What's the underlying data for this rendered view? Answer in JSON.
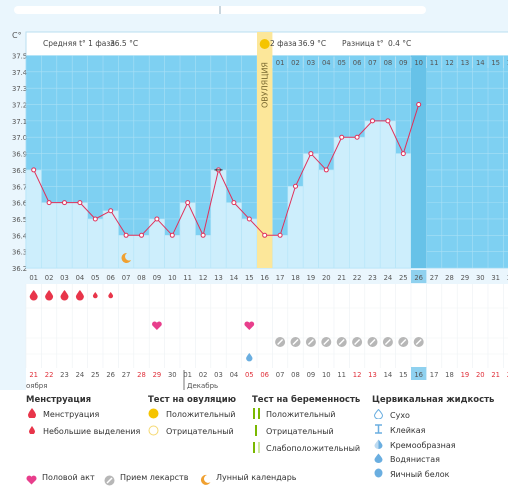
{
  "window": {
    "unit_label": "C°"
  },
  "header": {
    "phase1_label": "Средняя t° 1 фаза",
    "phase1_value": "36.5 °C",
    "phase2_label": "2 фаза",
    "phase2_value": "36.9 °C",
    "diff_label": "Разница t°",
    "diff_value": "0.4 °C",
    "ovulation_label": "ОВУЛЯЦИЯ"
  },
  "chart_data": {
    "type": "line",
    "ylim": [
      36.2,
      37.5
    ],
    "yticks": [
      "37.5",
      "37.4",
      "37.3",
      "37.2",
      "37.1",
      "37.0",
      "36.9",
      "36.8",
      "36.7",
      "36.6",
      "36.5",
      "36.4",
      "36.3",
      "36.2"
    ],
    "cycle_days": [
      "01",
      "02",
      "03",
      "04",
      "05",
      "06",
      "07",
      "08",
      "09",
      "10",
      "11",
      "12",
      "13",
      "14",
      "15",
      "16",
      "17",
      "18",
      "19",
      "20",
      "21",
      "22",
      "23",
      "24",
      "25",
      "26",
      "27",
      "28",
      "29",
      "30",
      "31",
      "32"
    ],
    "top_days_phase2": [
      "01",
      "02",
      "03",
      "04",
      "05",
      "06",
      "07",
      "08",
      "09",
      "10",
      "11",
      "12",
      "13",
      "14",
      "15",
      "16"
    ],
    "temperatures": [
      36.8,
      36.6,
      36.6,
      36.6,
      36.5,
      36.55,
      36.4,
      36.4,
      36.5,
      36.4,
      36.6,
      36.4,
      36.8,
      36.6,
      36.5,
      36.4,
      36.4,
      36.7,
      36.9,
      36.8,
      37.0,
      37.0,
      37.1,
      37.1,
      36.9,
      37.2
    ],
    "ovulation_day": 16,
    "current_day": 26,
    "dates": [
      "21",
      "22",
      "23",
      "24",
      "25",
      "26",
      "27",
      "28",
      "29",
      "30",
      "01",
      "02",
      "03",
      "04",
      "05",
      "06",
      "07",
      "08",
      "09",
      "10",
      "11",
      "12",
      "13",
      "14",
      "15",
      "16",
      "17",
      "18",
      "19",
      "20",
      "21",
      "22"
    ],
    "red_dates": [
      "21",
      "22",
      "28",
      "29",
      "05",
      "06",
      "12",
      "13",
      "19",
      "20"
    ],
    "months": [
      "оября",
      "Декабрь"
    ],
    "current_date": "16",
    "grid": true
  },
  "markers": {
    "menstruation_days": [
      1,
      2,
      3,
      4
    ],
    "light_bleeding_days": [
      5,
      6
    ],
    "intercourse_days": [
      9,
      15
    ],
    "medication_days": [
      17,
      18,
      19,
      20,
      21,
      22,
      23,
      24,
      25,
      26
    ],
    "lunar_day": 7,
    "drop_day": 15
  },
  "legend": {
    "col1_title": "Менструация",
    "col1_items": [
      "Менструация",
      "Небольшие выделения"
    ],
    "col2_title": "Тест на овуляцию",
    "col2_items": [
      "Положительный",
      "Отрицательный"
    ],
    "col3_title": "Тест на беременность",
    "col3_items": [
      "Положительный",
      "Отрицательный",
      "Слабоположительный"
    ],
    "col4_title": "Цервикальная жидкость",
    "col4_items": [
      "Сухо",
      "Клейкая",
      "Кремообразная",
      "Водянистая",
      "Яичный белок"
    ],
    "bottom_items": [
      "Половой акт",
      "Прием лекарств",
      "Лунный календарь"
    ],
    "colors": {
      "menstruation": "#e8354a",
      "ovulation_positive": "#f5c400",
      "pregnancy_positive": "#7ab800",
      "fluid": "#6aaee0",
      "intercourse": "#e83e8c",
      "medication": "#b7b7b7",
      "lunar": "#f0a030",
      "chart_bg": "#7ed0f2",
      "bar_fill": "#cdeefc",
      "line": "#e0305a"
    }
  }
}
